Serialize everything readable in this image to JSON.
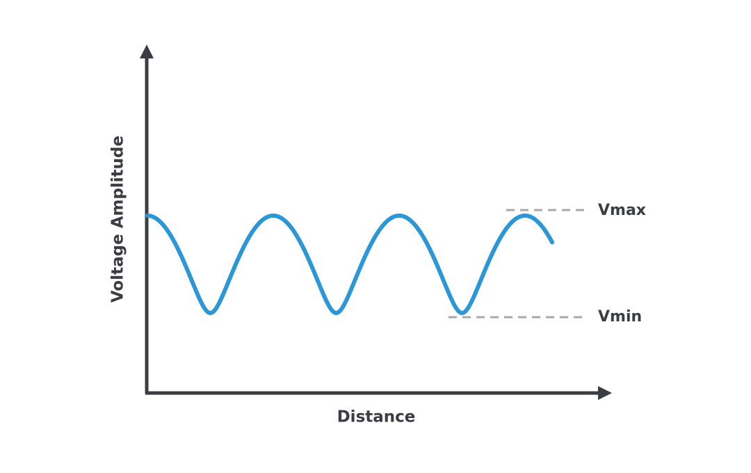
{
  "axes": {
    "y_label": "Voltage Amplitude",
    "x_label": "Distance"
  },
  "markers": {
    "max": "Vmax",
    "min": "Vmin"
  }
}
